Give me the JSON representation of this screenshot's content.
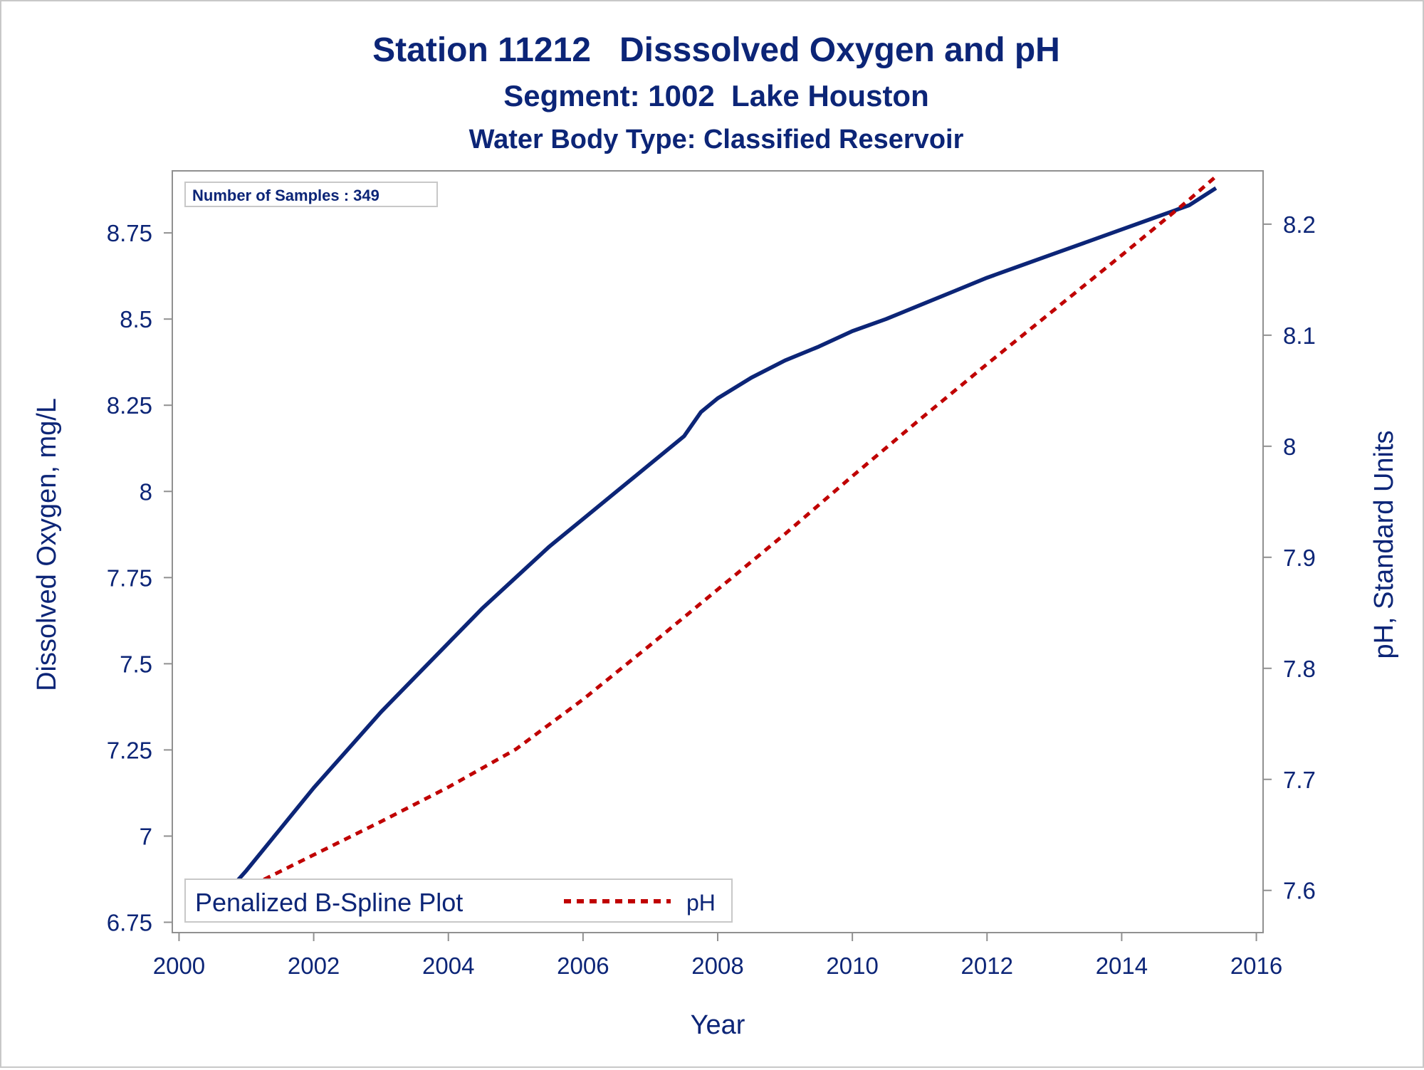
{
  "colors": {
    "text": "#0c2577",
    "do_line": "#0c2577",
    "ph_line": "#c00000",
    "axis": "#909090",
    "frame": "#c8c8c8"
  },
  "chart_data": {
    "type": "line",
    "title": "Station 11212   Disssolved Oxygen and pH",
    "subtitle": "Segment: 1002  Lake Houston",
    "subtitle2": "Water Body Type: Classified Reservoir",
    "xlabel": "Year",
    "ylabel": "Dissolved Oxygen, mg/L",
    "y2label": "pH, Standard Units",
    "xlim": [
      1999.9,
      2016.1
    ],
    "ylim": [
      6.72,
      8.93
    ],
    "y2lim": [
      7.562,
      8.248
    ],
    "xticks": [
      "2000",
      "2002",
      "2004",
      "2006",
      "2008",
      "2010",
      "2012",
      "2014",
      "2016"
    ],
    "yticks": [
      "6.75",
      "7",
      "7.25",
      "7.5",
      "7.75",
      "8",
      "8.25",
      "8.5",
      "8.75"
    ],
    "y2ticks": [
      "7.6",
      "7.7",
      "7.8",
      "7.9",
      "8",
      "8.1",
      "8.2"
    ],
    "inset_text": "Number of Samples : 349",
    "legend": {
      "position": "bottom-left",
      "entries": [
        "Penalized B-Spline Plot",
        "pH"
      ]
    },
    "grid": false,
    "series": [
      {
        "name": "Penalized B-Spline Plot",
        "axis": "left",
        "style": "solid",
        "x": [
          2000.5,
          2001,
          2001.5,
          2002,
          2002.5,
          2003,
          2003.5,
          2004,
          2004.5,
          2005,
          2005.5,
          2006,
          2006.5,
          2007,
          2007.5,
          2007.75,
          2008,
          2008.5,
          2009,
          2009.5,
          2010,
          2010.5,
          2011,
          2011.5,
          2012,
          2012.5,
          2013,
          2013.5,
          2014,
          2014.5,
          2015,
          2015.4
        ],
        "y": [
          6.79,
          6.9,
          7.02,
          7.14,
          7.25,
          7.36,
          7.46,
          7.56,
          7.66,
          7.75,
          7.84,
          7.92,
          8.0,
          8.08,
          8.16,
          8.23,
          8.27,
          8.33,
          8.38,
          8.42,
          8.465,
          8.5,
          8.54,
          8.58,
          8.62,
          8.655,
          8.69,
          8.725,
          8.76,
          8.795,
          8.83,
          8.88
        ]
      },
      {
        "name": "pH",
        "axis": "right",
        "style": "dashed",
        "x": [
          2000.4,
          2001,
          2002,
          2003,
          2004,
          2005,
          2006,
          2007,
          2008,
          2009,
          2010,
          2011,
          2012,
          2013,
          2014,
          2015,
          2015.4
        ],
        "y": [
          7.585,
          7.602,
          7.632,
          7.662,
          7.693,
          7.727,
          7.772,
          7.821,
          7.871,
          7.921,
          7.973,
          8.024,
          8.074,
          8.123,
          8.172,
          8.222,
          8.243
        ]
      }
    ]
  }
}
